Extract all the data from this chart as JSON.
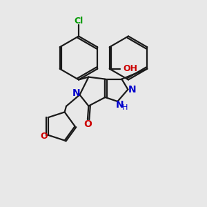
{
  "background_color": "#e8e8e8",
  "bond_color": "#1a1a1a",
  "nitrogen_color": "#0000cc",
  "oxygen_color": "#cc0000",
  "chlorine_color": "#009900",
  "lw": 1.6,
  "xlim": [
    0,
    10
  ],
  "ylim": [
    0,
    10
  ]
}
